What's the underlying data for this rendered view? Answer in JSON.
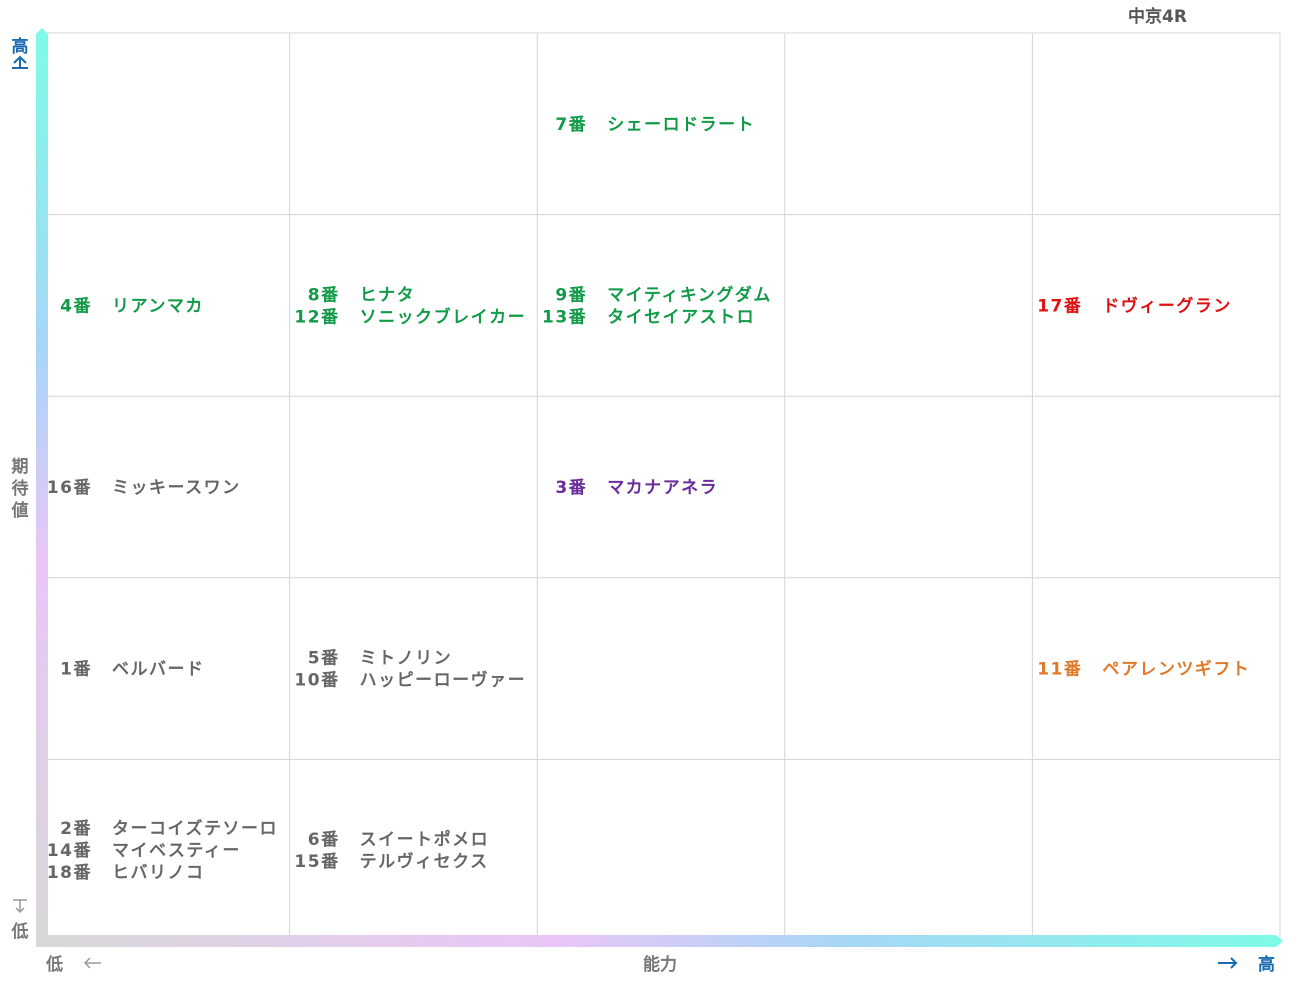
{
  "race": "中京4R",
  "colors": {
    "green": "#119a48",
    "gray": "#666666",
    "purple": "#6a2c9a",
    "red": "#e01010",
    "orange": "#e07a28",
    "axis_label": "#777777",
    "high_label": "#1a6ab0",
    "grid": "#d4d4d4"
  },
  "chart_data": {
    "type": "table",
    "x_axis": {
      "label": "能力",
      "low": "低",
      "high": "高",
      "levels": 5
    },
    "y_axis": {
      "label": "期待値",
      "low": "低",
      "high": "高",
      "levels": 5
    },
    "cells": [
      {
        "x": 3,
        "y": 5,
        "color": "green",
        "horses": [
          {
            "num": "7番",
            "name": "シェーロドラート"
          }
        ]
      },
      {
        "x": 1,
        "y": 4,
        "color": "green",
        "horses": [
          {
            "num": "4番",
            "name": "リアンマカ"
          }
        ]
      },
      {
        "x": 2,
        "y": 4,
        "color": "green",
        "horses": [
          {
            "num": "8番",
            "name": "ヒナタ"
          },
          {
            "num": "12番",
            "name": "ソニックブレイカー"
          }
        ]
      },
      {
        "x": 3,
        "y": 4,
        "color": "green",
        "horses": [
          {
            "num": "9番",
            "name": "マイティキングダム"
          },
          {
            "num": "13番",
            "name": "タイセイアストロ"
          }
        ]
      },
      {
        "x": 5,
        "y": 4,
        "color": "red",
        "horses": [
          {
            "num": "17番",
            "name": "ドヴィーグラン"
          }
        ]
      },
      {
        "x": 1,
        "y": 3,
        "color": "gray",
        "horses": [
          {
            "num": "16番",
            "name": "ミッキースワン"
          }
        ]
      },
      {
        "x": 3,
        "y": 3,
        "color": "purple",
        "horses": [
          {
            "num": "3番",
            "name": "マカナアネラ"
          }
        ]
      },
      {
        "x": 1,
        "y": 2,
        "color": "gray",
        "horses": [
          {
            "num": "1番",
            "name": "ベルバード"
          }
        ]
      },
      {
        "x": 2,
        "y": 2,
        "color": "gray",
        "horses": [
          {
            "num": "5番",
            "name": "ミトノリン"
          },
          {
            "num": "10番",
            "name": "ハッピーローヴァー"
          }
        ]
      },
      {
        "x": 5,
        "y": 2,
        "color": "orange",
        "horses": [
          {
            "num": "11番",
            "name": "ペアレンツギフト"
          }
        ]
      },
      {
        "x": 1,
        "y": 1,
        "color": "gray",
        "horses": [
          {
            "num": "2番",
            "name": "ターコイズテソーロ"
          },
          {
            "num": "14番",
            "name": "マイベスティー"
          },
          {
            "num": "18番",
            "name": "ヒバリノコ"
          }
        ]
      },
      {
        "x": 2,
        "y": 1,
        "color": "gray",
        "horses": [
          {
            "num": "6番",
            "name": "スイートポメロ"
          },
          {
            "num": "15番",
            "name": "テルヴィセクス"
          }
        ]
      }
    ]
  }
}
